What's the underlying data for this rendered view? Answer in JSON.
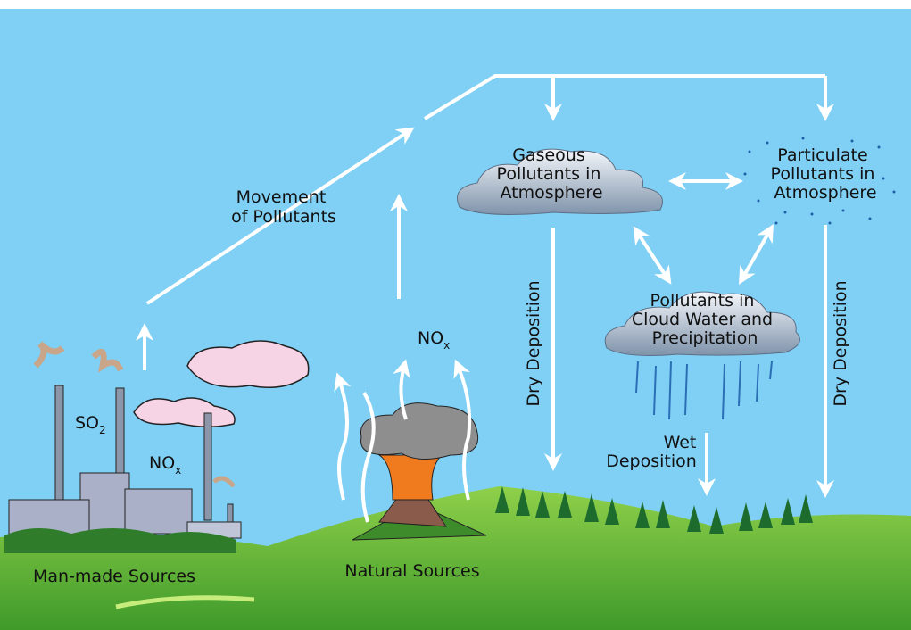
{
  "labels": {
    "movement": [
      "Movement",
      "of Pollutants"
    ],
    "gaseous": [
      "Gaseous",
      "Pollutants in",
      "Atmosphere"
    ],
    "particulate": [
      "Particulate",
      "Pollutants in",
      "Atmosphere"
    ],
    "cloud_water": [
      "Pollutants in",
      "Cloud Water and",
      "Precipitation"
    ],
    "dry_deposition_left": "Dry Deposition",
    "dry_deposition_right": "Dry Deposition",
    "wet_deposition": [
      "Wet",
      "Deposition"
    ],
    "so2": {
      "main": "SO",
      "sub": "2"
    },
    "nox_factory": {
      "main": "NO",
      "sub": "x"
    },
    "nox_volcano": {
      "main": "NO",
      "sub": "x"
    },
    "man_made_sources": "Man-made Sources",
    "natural_sources": "Natural Sources"
  }
}
